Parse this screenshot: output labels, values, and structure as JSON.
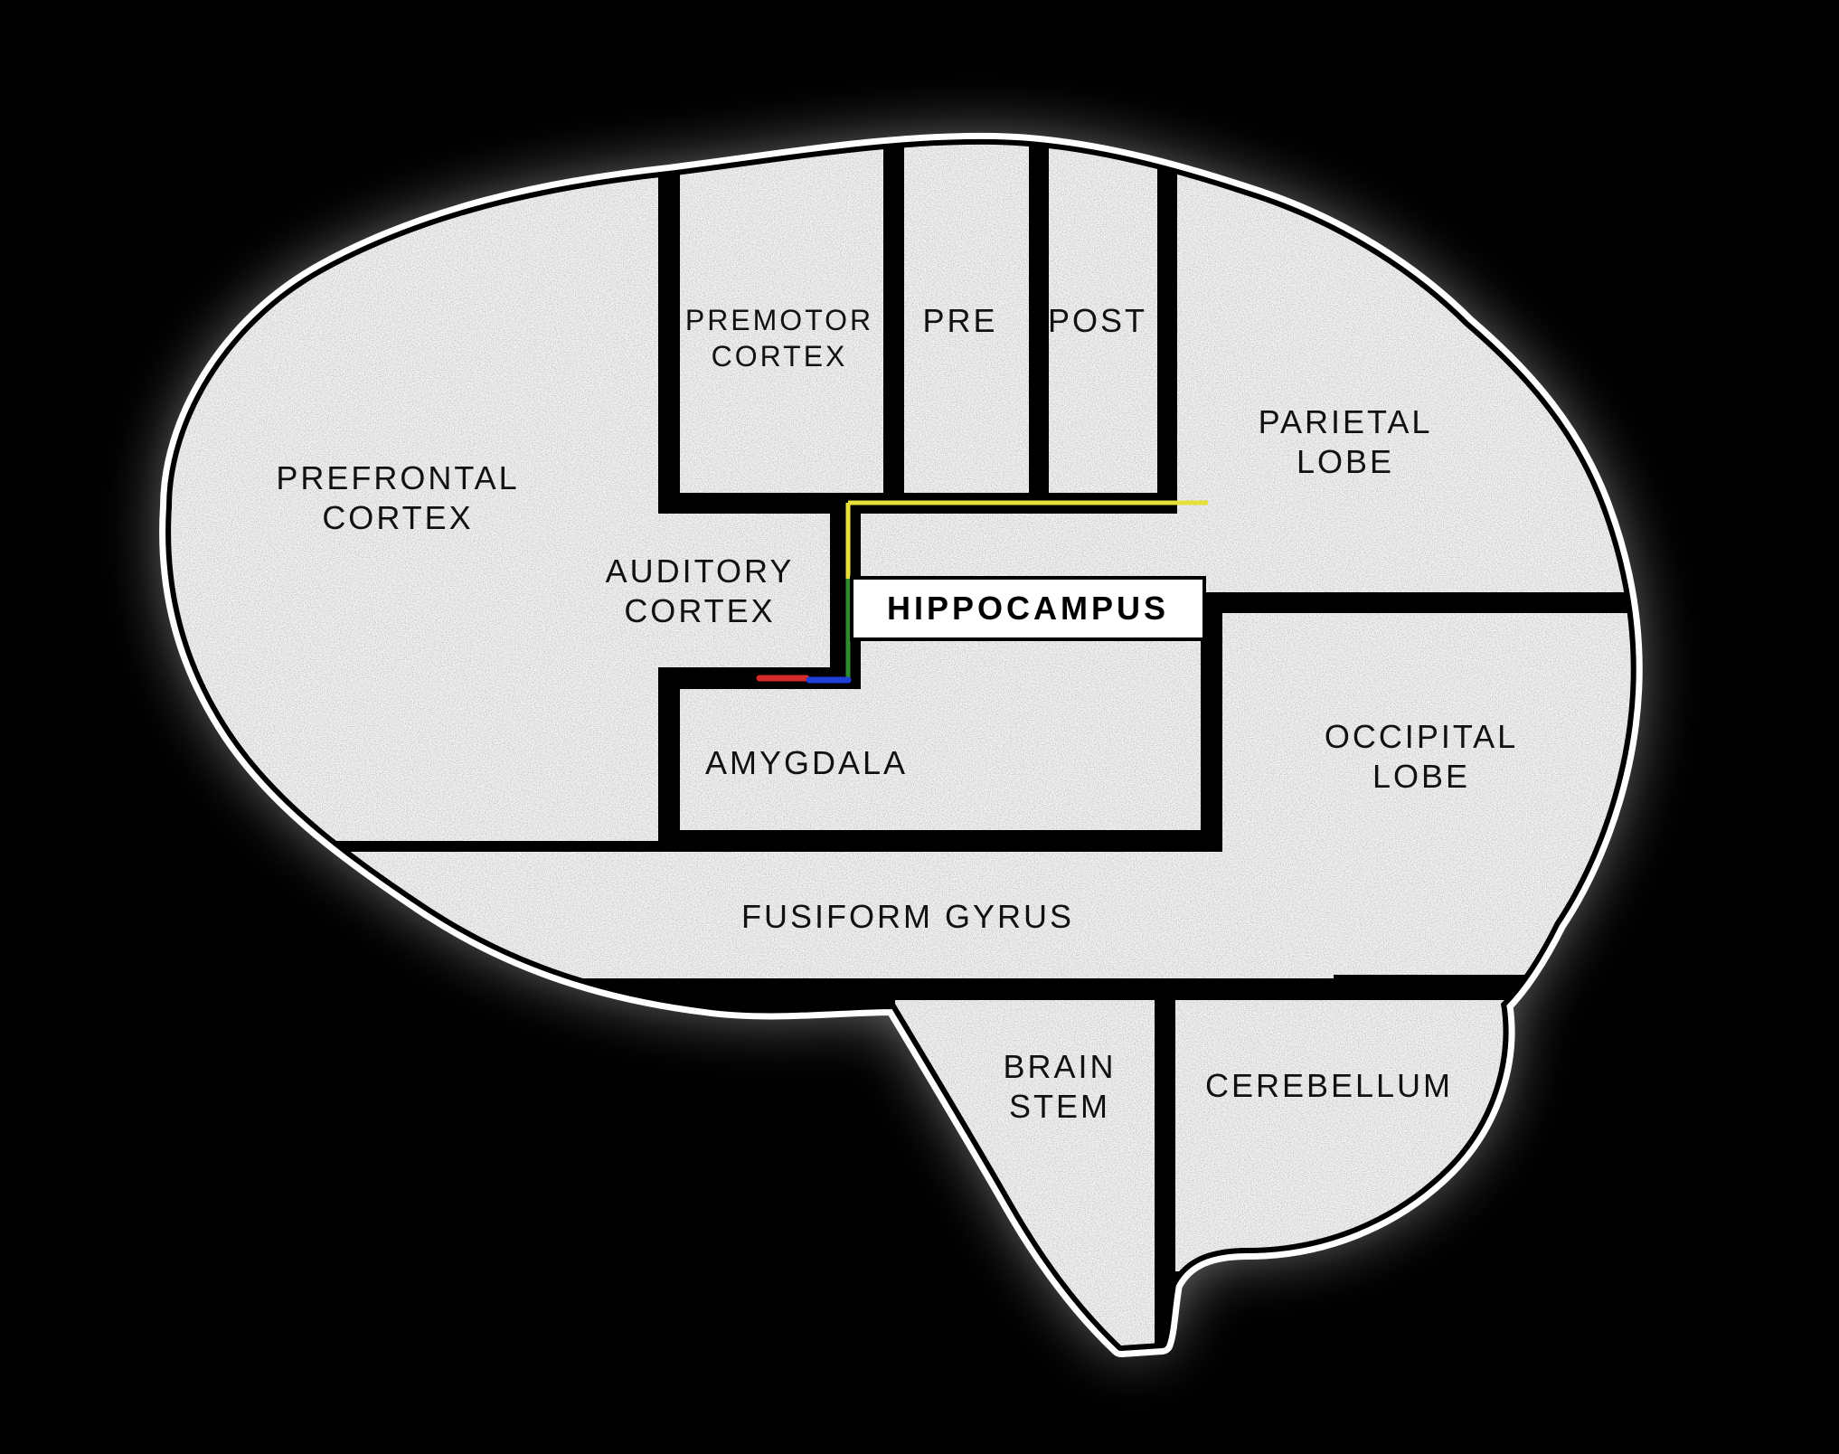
{
  "colors": {
    "background": "#000000",
    "region_fill": "#f4f4f4",
    "outline": "#000000",
    "highlight_top": "#e8e03a",
    "highlight_side": "#2e8b2e",
    "highlight_bottom_red": "#d42a2a",
    "highlight_bottom_blue": "#1f3fd8"
  },
  "regions": {
    "prefrontal": {
      "line1": "PREFRONTAL",
      "line2": "CORTEX"
    },
    "premotor": {
      "line1": "PREMOTOR",
      "line2": "CORTEX"
    },
    "pre": {
      "line1": "PRE"
    },
    "post": {
      "line1": "POST"
    },
    "parietal": {
      "line1": "PARIETAL",
      "line2": "LOBE"
    },
    "auditory": {
      "line1": "AUDITORY",
      "line2": "CORTEX"
    },
    "hippocampus": {
      "line1": "HIPPOCAMPUS"
    },
    "amygdala": {
      "line1": "AMYGDALA"
    },
    "occipital": {
      "line1": "OCCIPITAL",
      "line2": "LOBE"
    },
    "fusiform": {
      "line1": "FUSIFORM GYRUS"
    },
    "brainstem": {
      "line1": "BRAIN",
      "line2": "STEM"
    },
    "cerebellum": {
      "line1": "CEREBELLUM"
    }
  }
}
